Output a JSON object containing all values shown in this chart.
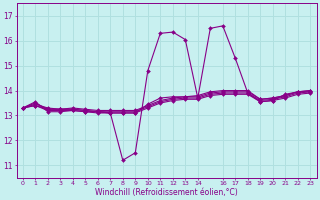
{
  "background_color": "#c8f0f0",
  "grid_color": "#b0e0e0",
  "line_color": "#880088",
  "xlabel": "Windchill (Refroidissement éolien,°C)",
  "xlim": [
    -0.5,
    23.5
  ],
  "ylim": [
    10.5,
    17.5
  ],
  "yticks": [
    11,
    12,
    13,
    14,
    15,
    16,
    17
  ],
  "xtick_positions": [
    0,
    1,
    2,
    3,
    4,
    5,
    6,
    7,
    8,
    9,
    10,
    11,
    12,
    13,
    14,
    16,
    17,
    18,
    19,
    20,
    21,
    22,
    23
  ],
  "xtick_labels": [
    "0",
    "1",
    "2",
    "3",
    "4",
    "5",
    "6",
    "7",
    "8",
    "9",
    "10",
    "11",
    "12",
    "13",
    "14",
    "16",
    "17",
    "18",
    "19",
    "20",
    "21",
    "22",
    "23"
  ],
  "series": [
    [
      13.3,
      13.55,
      13.15,
      13.15,
      13.2,
      13.15,
      13.15,
      13.1,
      11.2,
      11.5,
      14.8,
      16.3,
      16.35,
      16.05,
      13.7,
      16.5,
      16.6,
      15.3,
      13.9,
      13.55,
      13.6,
      13.85,
      13.95,
      13.95
    ],
    [
      13.3,
      13.4,
      13.2,
      13.2,
      13.2,
      13.15,
      13.1,
      13.1,
      13.1,
      13.1,
      13.3,
      13.5,
      13.6,
      13.65,
      13.65,
      13.8,
      13.85,
      13.85,
      13.85,
      13.55,
      13.6,
      13.7,
      13.85,
      13.9
    ],
    [
      13.3,
      13.4,
      13.25,
      13.25,
      13.25,
      13.2,
      13.15,
      13.15,
      13.15,
      13.15,
      13.35,
      13.55,
      13.65,
      13.7,
      13.7,
      13.85,
      13.9,
      13.9,
      13.9,
      13.6,
      13.65,
      13.75,
      13.9,
      13.95
    ],
    [
      13.3,
      13.45,
      13.3,
      13.25,
      13.3,
      13.25,
      13.2,
      13.2,
      13.2,
      13.2,
      13.4,
      13.6,
      13.7,
      13.75,
      13.75,
      13.9,
      13.95,
      13.95,
      13.95,
      13.65,
      13.7,
      13.8,
      13.95,
      14.0
    ],
    [
      13.3,
      13.5,
      13.25,
      13.25,
      13.25,
      13.2,
      13.15,
      13.1,
      13.1,
      13.1,
      13.45,
      13.7,
      13.75,
      13.75,
      13.8,
      13.95,
      14.0,
      14.0,
      14.0,
      13.65,
      13.7,
      13.8,
      13.95,
      14.0
    ]
  ]
}
